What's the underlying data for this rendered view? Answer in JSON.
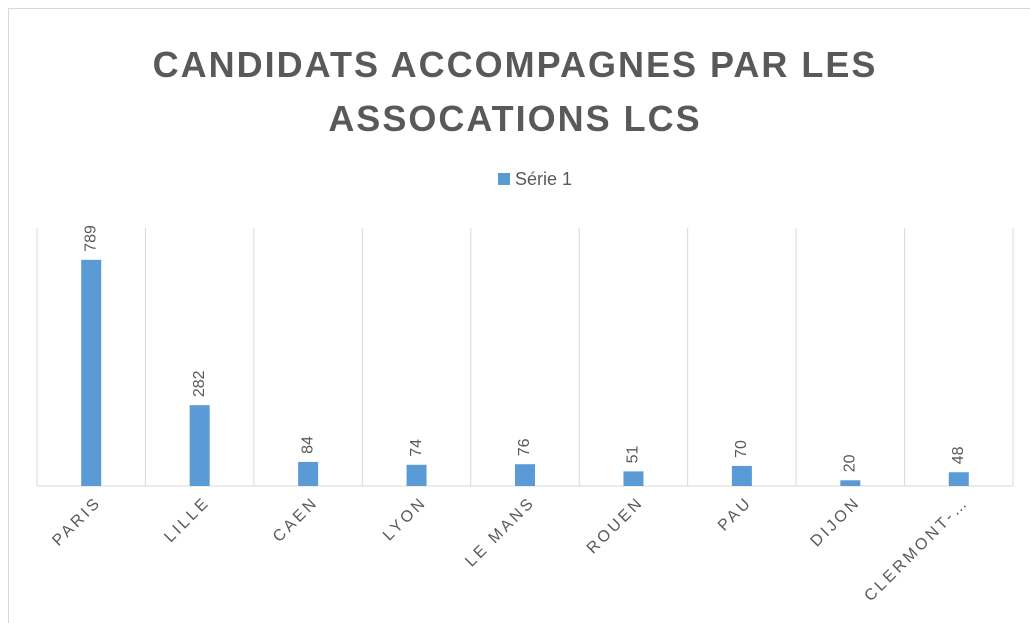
{
  "chart_data": {
    "type": "bar",
    "title": "CANDIDATS ACCOMPAGNES PAR LES ASSOCATIONS LCS",
    "categories": [
      "PARIS",
      "LILLE",
      "CAEN",
      "LYON",
      "LE MANS",
      "ROUEN",
      "PAU",
      "DIJON",
      "CLERMONT-…"
    ],
    "series": [
      {
        "name": "Série 1",
        "color": "#5b9bd5",
        "values": [
          789,
          282,
          84,
          74,
          76,
          51,
          70,
          20,
          48
        ]
      }
    ],
    "ylim": [
      0,
      900
    ],
    "grid": true,
    "legend": "top"
  }
}
